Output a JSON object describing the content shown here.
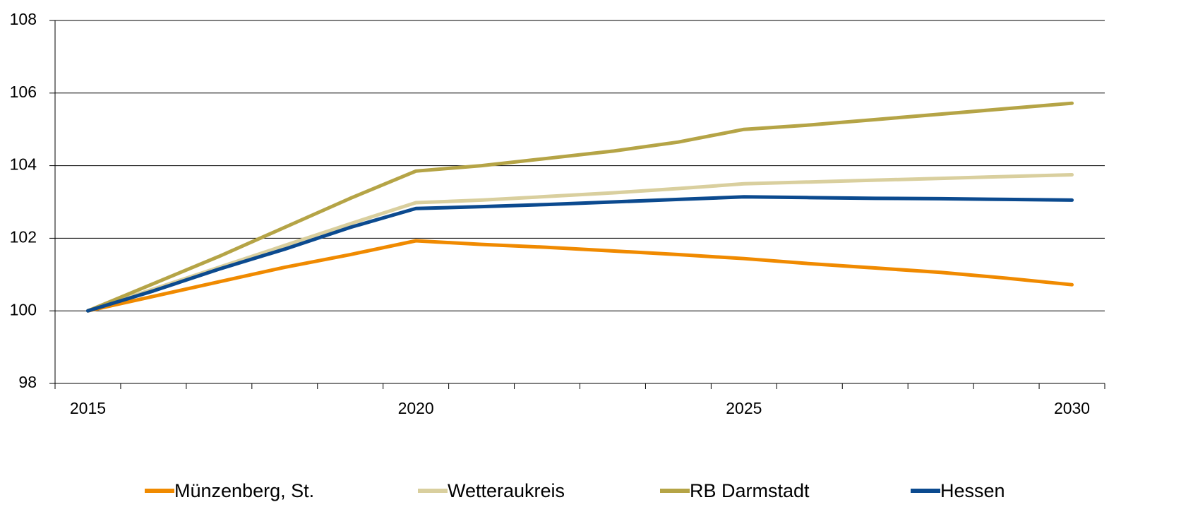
{
  "chart_data": {
    "type": "line",
    "categories": [
      "2015",
      null,
      null,
      null,
      null,
      "2020",
      null,
      null,
      null,
      null,
      "2025",
      null,
      null,
      null,
      null,
      "2030"
    ],
    "series": [
      {
        "name": "Münzenberg, St.",
        "color": "#f08a00",
        "values": [
          100,
          100.4,
          100.8,
          101.2,
          101.55,
          101.93,
          101.83,
          101.75,
          101.65,
          101.55,
          101.44,
          101.3,
          101.18,
          101.06,
          100.9,
          100.72
        ]
      },
      {
        "name": "Wetteraukreis",
        "color": "#d9cf9e",
        "values": [
          100,
          100.6,
          101.2,
          101.8,
          102.4,
          102.98,
          103.05,
          103.15,
          103.25,
          103.37,
          103.5,
          103.55,
          103.6,
          103.65,
          103.7,
          103.75
        ]
      },
      {
        "name": "RB Darmstadt",
        "color": "#b5a446",
        "values": [
          100,
          100.75,
          101.5,
          102.3,
          103.1,
          103.85,
          104.0,
          104.2,
          104.4,
          104.65,
          105.0,
          105.12,
          105.27,
          105.42,
          105.57,
          105.72
        ]
      },
      {
        "name": "Hessen",
        "color": "#0b4a8f",
        "values": [
          100,
          100.55,
          101.15,
          101.7,
          102.3,
          102.82,
          102.87,
          102.93,
          103.0,
          103.07,
          103.14,
          103.12,
          103.1,
          103.09,
          103.07,
          103.05
        ]
      }
    ],
    "ylim": [
      98,
      108
    ],
    "yticks": [
      98,
      100,
      102,
      104,
      106,
      108
    ],
    "grid": true,
    "legend": "bottom"
  }
}
